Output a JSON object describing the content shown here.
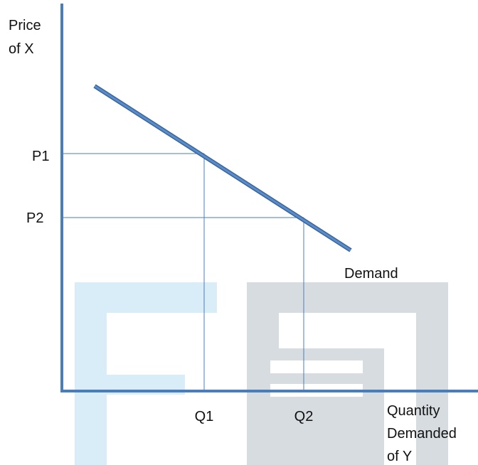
{
  "axes": {
    "y_label": [
      "Price",
      "of X"
    ],
    "x_label": [
      "Quantity",
      "Demanded",
      "of Y"
    ]
  },
  "curve": {
    "label": "Demand"
  },
  "points": [
    {
      "price": "P1",
      "quantity": "Q1"
    },
    {
      "price": "P2",
      "quantity": "Q2"
    }
  ]
}
